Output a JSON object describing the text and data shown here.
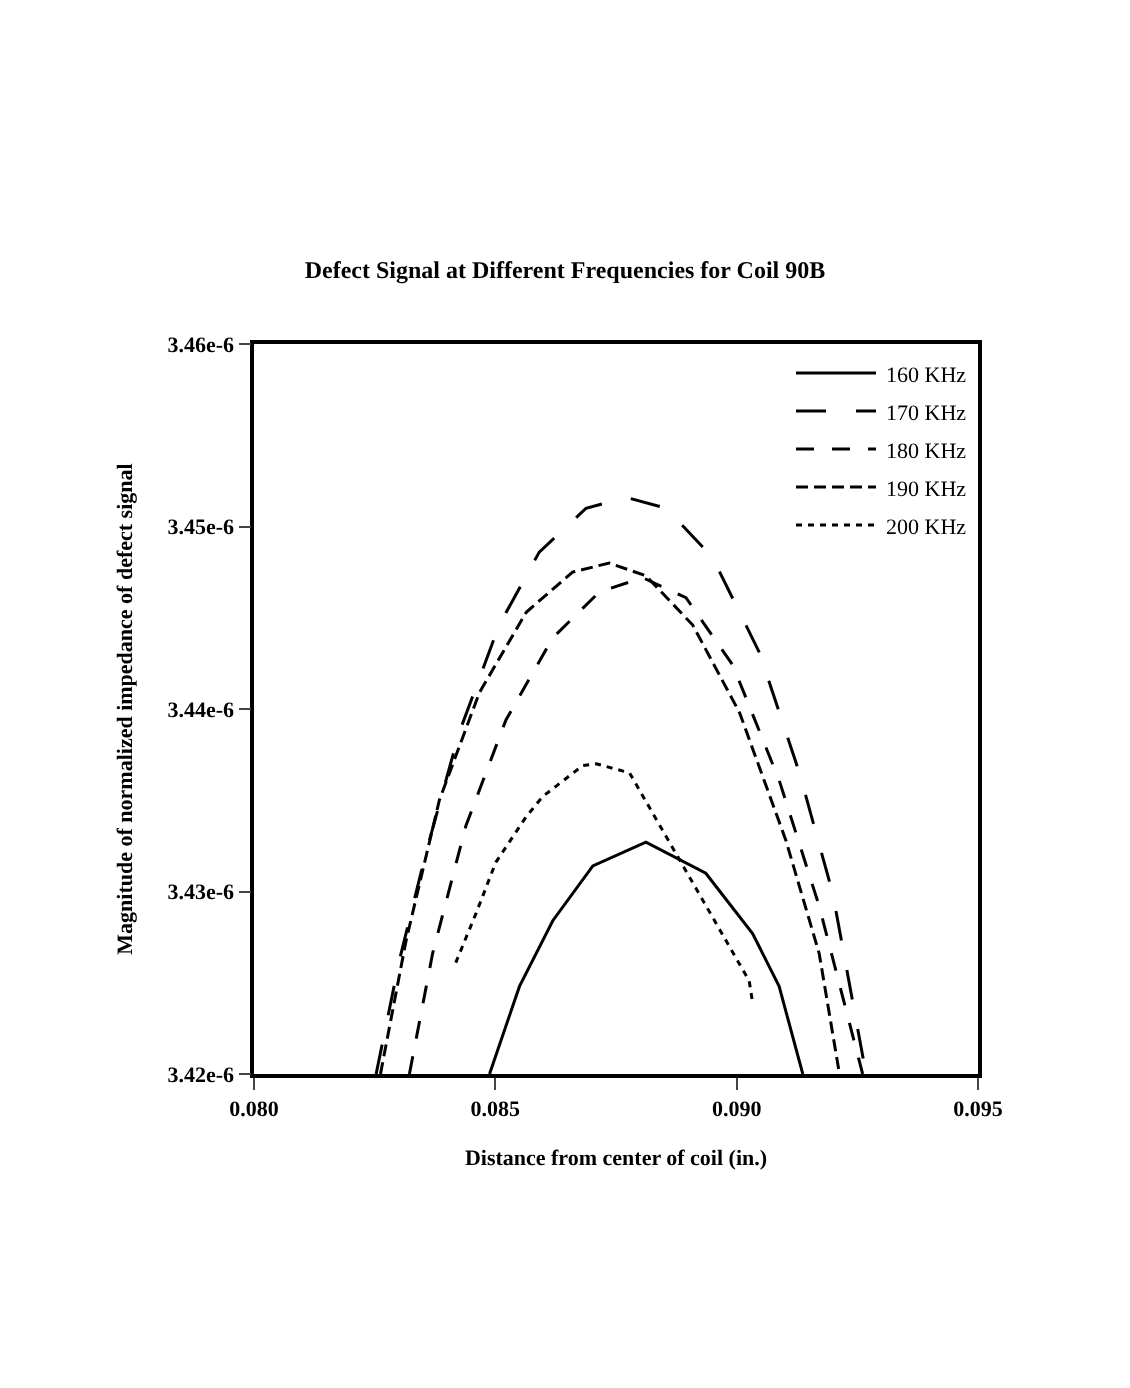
{
  "chart_data": {
    "type": "line",
    "title": "Defect Signal at Different Frequencies for Coil 90B",
    "xlabel": "Distance from center of coil (in.)",
    "ylabel": "Magnitude of normalized impedance of defect signal",
    "xlim": [
      0.08,
      0.095
    ],
    "xticks": [
      {
        "value": 0.08,
        "label": "0.080"
      },
      {
        "value": 0.085,
        "label": "0.085"
      },
      {
        "value": 0.09,
        "label": "0.090"
      },
      {
        "value": 0.095,
        "label": "0.095"
      }
    ],
    "ylim": [
      3.42e-06,
      3.46e-06
    ],
    "yticks": [
      {
        "value": 3.42e-06,
        "label": "3.42e-6"
      },
      {
        "value": 3.43e-06,
        "label": "3.43e-6"
      },
      {
        "value": 3.44e-06,
        "label": "3.44e-6"
      },
      {
        "value": 3.45e-06,
        "label": "3.45e-6"
      },
      {
        "value": 3.46e-06,
        "label": "3.46e-6"
      }
    ],
    "legend": "top right",
    "grid": false,
    "marker": "none",
    "series": [
      {
        "name": "160 KHz",
        "color": "#000000",
        "line_style": "solid",
        "x": [
          0.08488,
          0.0855,
          0.08619,
          0.08702,
          0.08812,
          0.08936,
          0.09033,
          0.09088,
          0.09137
        ],
        "values": [
          3.42e-06,
          3.4248e-06,
          3.4284e-06,
          3.4314e-06,
          3.4327e-06,
          3.431e-06,
          3.4277e-06,
          3.4248e-06,
          3.42e-06
        ]
      },
      {
        "name": "170 KHz",
        "color": "#000000",
        "line_style": "dashed",
        "x": [
          0.08253,
          0.08301,
          0.08356,
          0.08425,
          0.08508,
          0.08591,
          0.08688,
          0.08771,
          0.08854,
          0.0895,
          0.09047,
          0.0913,
          0.09199,
          0.09268
        ],
        "values": [
          3.42e-06,
          3.4262e-06,
          3.4321e-06,
          3.4387e-06,
          3.4446e-06,
          3.4486e-06,
          3.451e-06,
          3.4516e-06,
          3.451e-06,
          3.4483e-06,
          3.4431e-06,
          3.4365e-06,
          3.4299e-06,
          3.42e-06
        ]
      },
      {
        "name": "180 KHz",
        "color": "#000000",
        "line_style": "dashed",
        "x": [
          0.08322,
          0.0837,
          0.08439,
          0.08522,
          0.08619,
          0.08715,
          0.08805,
          0.08895,
          0.08992,
          0.09088,
          0.09171,
          0.09261
        ],
        "values": [
          3.42e-06,
          3.4266e-06,
          3.4336e-06,
          3.4394e-06,
          3.4439e-06,
          3.4464e-06,
          3.4472e-06,
          3.4461e-06,
          3.4424e-06,
          3.4361e-06,
          3.4292e-06,
          3.42e-06
        ]
      },
      {
        "name": "190 KHz",
        "color": "#000000",
        "line_style": "dashed",
        "x": [
          0.08262,
          0.08315,
          0.08384,
          0.08467,
          0.08564,
          0.0866,
          0.08736,
          0.08812,
          0.08909,
          0.09006,
          0.09102,
          0.09171,
          0.09213
        ],
        "values": [
          3.42e-06,
          3.4273e-06,
          3.435e-06,
          3.4409e-06,
          3.4453e-06,
          3.4475e-06,
          3.448e-06,
          3.4473e-06,
          3.4446e-06,
          3.4398e-06,
          3.4328e-06,
          3.4266e-06,
          3.42e-06
        ]
      },
      {
        "name": "200 KHz",
        "color": "#000000",
        "line_style": "dotted",
        "x": [
          0.08418,
          0.0846,
          0.08501,
          0.08564,
          0.08598,
          0.08681,
          0.08709,
          0.08778,
          0.09026,
          0.09033
        ],
        "values": [
          3.4261e-06,
          3.4288e-06,
          3.4316e-06,
          3.4341e-06,
          3.4352e-06,
          3.4369e-06,
          3.437e-06,
          3.4365e-06,
          3.4251e-06,
          3.4239e-06
        ]
      }
    ]
  }
}
